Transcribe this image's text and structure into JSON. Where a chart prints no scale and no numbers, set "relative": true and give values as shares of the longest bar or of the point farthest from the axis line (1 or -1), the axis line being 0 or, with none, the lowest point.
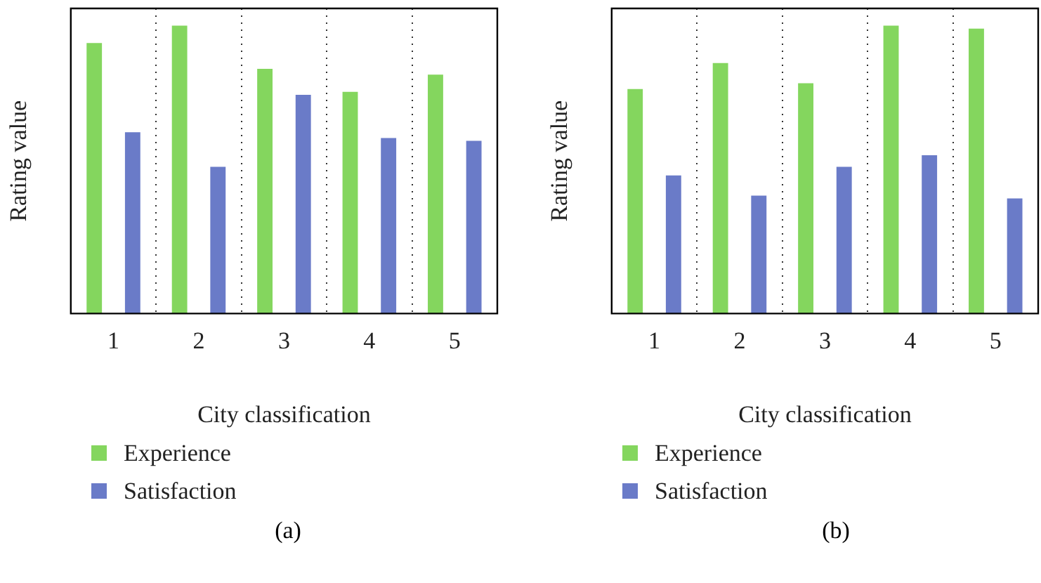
{
  "chart_data": [
    {
      "type": "bar",
      "relative": true,
      "xlabel": "City classification",
      "ylabel": "Rating value",
      "categories": [
        "1",
        "2",
        "3",
        "4",
        "5"
      ],
      "grid": "x",
      "legend": "bottom",
      "annotations": [
        "(a)"
      ],
      "series": [
        {
          "name": "Experience",
          "color": "#84d65e",
          "values": [
            0.94,
            1,
            0.85,
            0.77,
            0.83
          ]
        },
        {
          "name": "Satisfaction",
          "color": "#6a7bc8",
          "values": [
            0.63,
            0.51,
            0.76,
            0.61,
            0.6
          ]
        }
      ]
    },
    {
      "type": "bar",
      "relative": true,
      "xlabel": "City classification",
      "ylabel": "Rating value",
      "categories": [
        "1",
        "2",
        "3",
        "4",
        "5"
      ],
      "grid": "x",
      "legend": "bottom",
      "annotations": [
        "(b)"
      ],
      "series": [
        {
          "name": "Experience",
          "color": "#84d65e",
          "values": [
            0.78,
            0.87,
            0.8,
            1,
            0.99
          ]
        },
        {
          "name": "Satisfaction",
          "color": "#6a7bc8",
          "values": [
            0.48,
            0.41,
            0.51,
            0.55,
            0.4
          ]
        }
      ]
    }
  ]
}
